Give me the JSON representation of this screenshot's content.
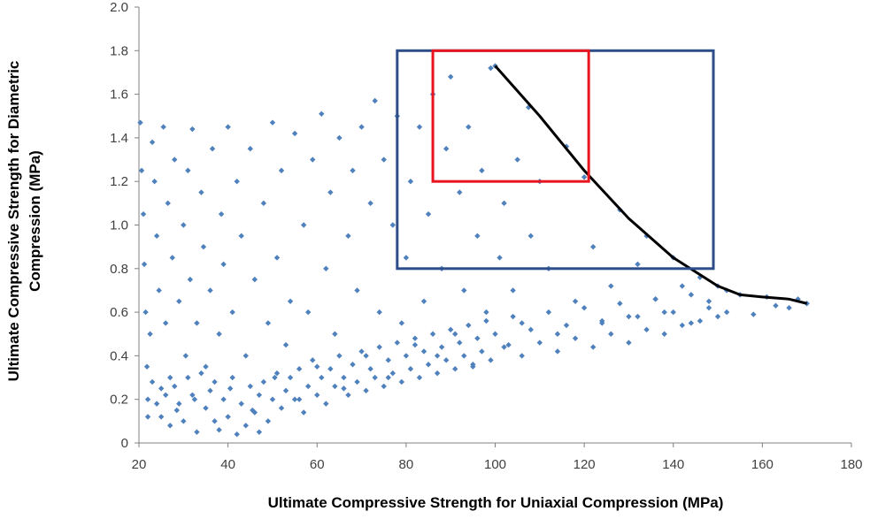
{
  "chart_data": {
    "type": "scatter",
    "title": "",
    "xlabel": "Ultimate Compressive Strength for Uniaxial  Compression (MPa)",
    "ylabel_lines": [
      "Ultimate Compressive Strength for Diametric",
      "Compression (MPa)"
    ],
    "xlim": [
      20,
      180
    ],
    "ylim": [
      0,
      2.0
    ],
    "x_ticks": [
      "20",
      "40",
      "60",
      "80",
      "100",
      "120",
      "140",
      "160",
      "180"
    ],
    "y_ticks": [
      "0",
      "0.2",
      "0.4",
      "0.6",
      "0.8",
      "1.0",
      "1.2",
      "1.4",
      "1.6",
      "1.8",
      "2.0"
    ],
    "y_tick_values": [
      0,
      0.2,
      0.4,
      0.6,
      0.8,
      1.0,
      1.2,
      1.4,
      1.6,
      1.8,
      2.0
    ],
    "grid": false,
    "legend": "none",
    "series": [
      {
        "marker": "diamond",
        "color": "#4F81BD",
        "points": [
          [
            20.3,
            1.47
          ],
          [
            20.6,
            1.25
          ],
          [
            21.0,
            1.05
          ],
          [
            21.2,
            0.82
          ],
          [
            21.5,
            0.6
          ],
          [
            21.8,
            0.35
          ],
          [
            22.0,
            0.12
          ],
          [
            22.5,
            0.5
          ],
          [
            23.0,
            1.38
          ],
          [
            23.5,
            1.2
          ],
          [
            24.0,
            0.95
          ],
          [
            24.5,
            0.7
          ],
          [
            25.0,
            0.25
          ],
          [
            25.5,
            1.45
          ],
          [
            26.0,
            0.55
          ],
          [
            26.5,
            1.1
          ],
          [
            27.0,
            0.3
          ],
          [
            27.5,
            0.85
          ],
          [
            28.0,
            1.3
          ],
          [
            28.5,
            0.15
          ],
          [
            29.0,
            0.65
          ],
          [
            30.0,
            1.0
          ],
          [
            30.5,
            0.4
          ],
          [
            31.0,
            1.25
          ],
          [
            31.5,
            0.75
          ],
          [
            32.0,
            1.44
          ],
          [
            32.5,
            0.2
          ],
          [
            33.0,
            0.55
          ],
          [
            34.0,
            1.15
          ],
          [
            34.5,
            0.9
          ],
          [
            35.0,
            0.35
          ],
          [
            36.0,
            0.7
          ],
          [
            36.5,
            1.35
          ],
          [
            37.0,
            0.1
          ],
          [
            38.0,
            0.5
          ],
          [
            38.5,
            1.05
          ],
          [
            39.0,
            0.82
          ],
          [
            40.0,
            1.45
          ],
          [
            40.5,
            0.25
          ],
          [
            41.0,
            0.6
          ],
          [
            42.0,
            1.2
          ],
          [
            43.0,
            0.95
          ],
          [
            44.0,
            0.4
          ],
          [
            45.0,
            1.35
          ],
          [
            45.5,
            0.15
          ],
          [
            46.0,
            0.75
          ],
          [
            47.0,
            0.05
          ],
          [
            48.0,
            1.1
          ],
          [
            49.0,
            0.55
          ],
          [
            50.0,
            1.47
          ],
          [
            50.5,
            0.3
          ],
          [
            51.0,
            0.85
          ],
          [
            52.0,
            1.25
          ],
          [
            53.0,
            0.45
          ],
          [
            54.0,
            0.65
          ],
          [
            55.0,
            1.42
          ],
          [
            56.0,
            0.2
          ],
          [
            57.0,
            1.0
          ],
          [
            58.0,
            0.6
          ],
          [
            59.0,
            1.3
          ],
          [
            60.0,
            0.35
          ],
          [
            61.0,
            1.51
          ],
          [
            62.0,
            0.8
          ],
          [
            63.0,
            1.15
          ],
          [
            64.0,
            0.5
          ],
          [
            65.0,
            1.4
          ],
          [
            66.0,
            0.25
          ],
          [
            67.0,
            0.95
          ],
          [
            68.0,
            1.25
          ],
          [
            69.0,
            0.7
          ],
          [
            70.0,
            1.45
          ],
          [
            71.0,
            0.4
          ],
          [
            72.0,
            1.1
          ],
          [
            73.0,
            1.57
          ],
          [
            74.0,
            0.6
          ],
          [
            75.0,
            1.3
          ],
          [
            76.0,
            0.3
          ],
          [
            77.0,
            1.0
          ],
          [
            78.0,
            1.5
          ],
          [
            79.0,
            0.55
          ],
          [
            80.0,
            0.85
          ],
          [
            81.0,
            1.2
          ],
          [
            82.0,
            0.45
          ],
          [
            83.0,
            1.45
          ],
          [
            84.0,
            0.65
          ],
          [
            85.0,
            1.05
          ],
          [
            86.0,
            1.6
          ],
          [
            87.0,
            0.4
          ],
          [
            88.0,
            0.8
          ],
          [
            89.0,
            1.35
          ],
          [
            90.0,
            1.68
          ],
          [
            91.0,
            0.5
          ],
          [
            92.0,
            1.15
          ],
          [
            93.0,
            0.7
          ],
          [
            94.0,
            1.45
          ],
          [
            95.0,
            0.35
          ],
          [
            96.0,
            0.95
          ],
          [
            97.0,
            1.25
          ],
          [
            98.0,
            0.6
          ],
          [
            99.0,
            1.72
          ],
          [
            100.0,
            1.73
          ],
          [
            101.0,
            0.85
          ],
          [
            102.0,
            1.1
          ],
          [
            103.0,
            0.45
          ],
          [
            104.0,
            0.7
          ],
          [
            105.0,
            1.3
          ],
          [
            106.0,
            0.55
          ],
          [
            107.5,
            1.54
          ],
          [
            108.0,
            0.95
          ],
          [
            110.0,
            1.2
          ],
          [
            112.0,
            0.8
          ],
          [
            114.0,
            0.5
          ],
          [
            116.0,
            1.36
          ],
          [
            118.0,
            0.65
          ],
          [
            120.0,
            1.22
          ],
          [
            122.0,
            0.9
          ],
          [
            124.0,
            0.55
          ],
          [
            126.0,
            0.72
          ],
          [
            128.0,
            1.07
          ],
          [
            130.0,
            0.58
          ],
          [
            132.0,
            0.82
          ],
          [
            134.0,
            0.95
          ],
          [
            136.0,
            0.66
          ],
          [
            138.0,
            0.6
          ],
          [
            140.0,
            0.85
          ],
          [
            142.0,
            0.72
          ],
          [
            144.0,
            0.55
          ],
          [
            146.0,
            0.76
          ],
          [
            148.0,
            0.65
          ],
          [
            150.0,
            0.72
          ],
          [
            152.0,
            0.6
          ],
          [
            155.0,
            0.68
          ],
          [
            158.0,
            0.59
          ],
          [
            161.0,
            0.67
          ],
          [
            163.0,
            0.63
          ],
          [
            166.0,
            0.62
          ],
          [
            168.0,
            0.66
          ],
          [
            170.0,
            0.64
          ],
          [
            22.0,
            0.2
          ],
          [
            23.0,
            0.28
          ],
          [
            24.0,
            0.18
          ],
          [
            25.0,
            0.12
          ],
          [
            26.0,
            0.22
          ],
          [
            27.0,
            0.08
          ],
          [
            28.0,
            0.26
          ],
          [
            29.0,
            0.18
          ],
          [
            30.0,
            0.1
          ],
          [
            31.0,
            0.3
          ],
          [
            32.0,
            0.22
          ],
          [
            33.0,
            0.05
          ],
          [
            34.0,
            0.32
          ],
          [
            35.0,
            0.16
          ],
          [
            36.0,
            0.24
          ],
          [
            37.0,
            0.28
          ],
          [
            38.0,
            0.06
          ],
          [
            39.0,
            0.2
          ],
          [
            40.0,
            0.12
          ],
          [
            41.0,
            0.3
          ],
          [
            42.0,
            0.04
          ],
          [
            43.0,
            0.18
          ],
          [
            44.0,
            0.08
          ],
          [
            45.0,
            0.26
          ],
          [
            46.0,
            0.14
          ],
          [
            47.0,
            0.22
          ],
          [
            48.0,
            0.28
          ],
          [
            49.0,
            0.1
          ],
          [
            50.0,
            0.2
          ],
          [
            51.0,
            0.32
          ],
          [
            52.0,
            0.16
          ],
          [
            53.0,
            0.24
          ],
          [
            54.0,
            0.3
          ],
          [
            55.0,
            0.2
          ],
          [
            56.0,
            0.34
          ],
          [
            57.0,
            0.14
          ],
          [
            58.0,
            0.26
          ],
          [
            59.0,
            0.38
          ],
          [
            60.0,
            0.22
          ],
          [
            61.0,
            0.3
          ],
          [
            62.0,
            0.18
          ],
          [
            63.0,
            0.34
          ],
          [
            64.0,
            0.26
          ],
          [
            65.0,
            0.4
          ],
          [
            66.0,
            0.3
          ],
          [
            67.0,
            0.22
          ],
          [
            68.0,
            0.36
          ],
          [
            69.0,
            0.28
          ],
          [
            70.0,
            0.42
          ],
          [
            71.0,
            0.24
          ],
          [
            72.0,
            0.34
          ],
          [
            73.0,
            0.3
          ],
          [
            74.0,
            0.44
          ],
          [
            75.0,
            0.26
          ],
          [
            76.0,
            0.38
          ],
          [
            77.0,
            0.32
          ],
          [
            78.0,
            0.46
          ],
          [
            79.0,
            0.28
          ],
          [
            80.0,
            0.4
          ],
          [
            81.0,
            0.34
          ],
          [
            82.0,
            0.48
          ],
          [
            83.0,
            0.3
          ],
          [
            84.0,
            0.42
          ],
          [
            85.0,
            0.36
          ],
          [
            86.0,
            0.5
          ],
          [
            87.0,
            0.32
          ],
          [
            88.0,
            0.44
          ],
          [
            89.0,
            0.38
          ],
          [
            90.0,
            0.52
          ],
          [
            91.0,
            0.34
          ],
          [
            92.0,
            0.46
          ],
          [
            93.0,
            0.4
          ],
          [
            94.0,
            0.54
          ],
          [
            95.0,
            0.36
          ],
          [
            96.0,
            0.48
          ],
          [
            97.0,
            0.42
          ],
          [
            98.0,
            0.56
          ],
          [
            99.0,
            0.38
          ],
          [
            100.0,
            0.5
          ],
          [
            102.0,
            0.44
          ],
          [
            104.0,
            0.58
          ],
          [
            106.0,
            0.4
          ],
          [
            108.0,
            0.52
          ],
          [
            110.0,
            0.46
          ],
          [
            112.0,
            0.6
          ],
          [
            114.0,
            0.42
          ],
          [
            116.0,
            0.54
          ],
          [
            118.0,
            0.48
          ],
          [
            120.0,
            0.62
          ],
          [
            122.0,
            0.44
          ],
          [
            124.0,
            0.56
          ],
          [
            126.0,
            0.5
          ],
          [
            128.0,
            0.64
          ],
          [
            130.0,
            0.46
          ],
          [
            132.0,
            0.58
          ],
          [
            134.0,
            0.52
          ],
          [
            136.0,
            0.66
          ],
          [
            138.0,
            0.5
          ],
          [
            140.0,
            0.6
          ],
          [
            142.0,
            0.54
          ],
          [
            144.0,
            0.68
          ],
          [
            146.0,
            0.56
          ],
          [
            148.0,
            0.62
          ],
          [
            150.0,
            0.58
          ],
          [
            152.0,
            0.7
          ]
        ]
      }
    ],
    "curve": {
      "color": "#000000",
      "points": [
        [
          100,
          1.73
        ],
        [
          110,
          1.5
        ],
        [
          120,
          1.25
        ],
        [
          130,
          1.03
        ],
        [
          140,
          0.85
        ],
        [
          150,
          0.72
        ],
        [
          155,
          0.68
        ],
        [
          160,
          0.67
        ],
        [
          166,
          0.66
        ],
        [
          170,
          0.64
        ]
      ]
    },
    "rectangles": [
      {
        "name": "blue-box",
        "color": "#2E4E8A",
        "x": [
          78,
          149
        ],
        "y": [
          0.8,
          1.8
        ]
      },
      {
        "name": "red-box",
        "color": "#E8141E",
        "x": [
          86,
          121
        ],
        "y": [
          1.2,
          1.8
        ]
      }
    ]
  }
}
